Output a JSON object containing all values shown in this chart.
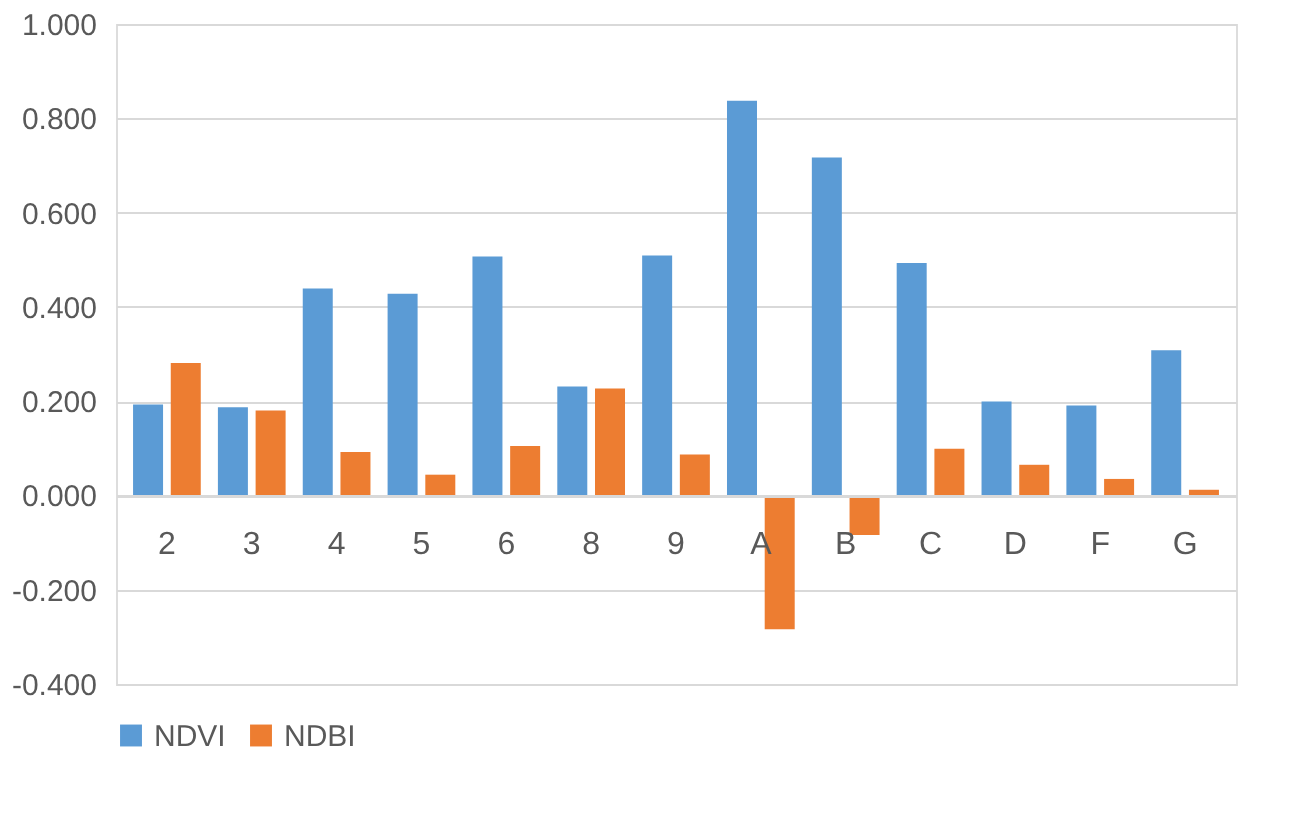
{
  "chart_data": {
    "type": "bar",
    "categories": [
      "2",
      "3",
      "4",
      "5",
      "6",
      "8",
      "9",
      "A",
      "B",
      "C",
      "D",
      "F",
      "G"
    ],
    "series": [
      {
        "name": "NDVI",
        "color": "#5b9bd5",
        "values": [
          0.193,
          0.187,
          0.439,
          0.428,
          0.507,
          0.231,
          0.509,
          0.837,
          0.717,
          0.493,
          0.199,
          0.191,
          0.308
        ]
      },
      {
        "name": "NDBI",
        "color": "#ed7d31",
        "values": [
          0.281,
          0.18,
          0.092,
          0.044,
          0.105,
          0.227,
          0.087,
          -0.284,
          -0.084,
          0.099,
          0.065,
          0.035,
          0.012
        ]
      }
    ],
    "ylim": [
      -0.4,
      1.0
    ],
    "yticks": [
      {
        "value": -0.4,
        "label": "-0.400"
      },
      {
        "value": -0.2,
        "label": "-0.200"
      },
      {
        "value": 0,
        "label": "0.000"
      },
      {
        "value": 0.2,
        "label": "0.200"
      },
      {
        "value": 0.4,
        "label": "0.400"
      },
      {
        "value": 0.6,
        "label": "0.600"
      },
      {
        "value": 0.8,
        "label": "0.800"
      },
      {
        "value": 1.0,
        "label": "1.000"
      }
    ],
    "grid": "y",
    "legend": "bottom"
  }
}
